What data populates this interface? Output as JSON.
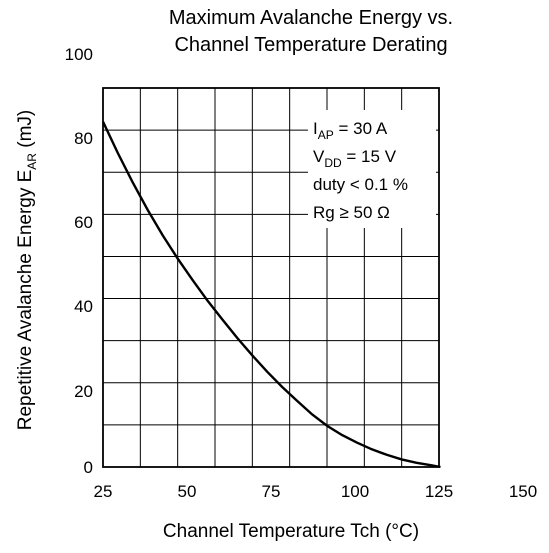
{
  "chart_data": {
    "type": "line",
    "title_line1": "Maximum Avalanche Energy vs.",
    "title_line2": "Channel Temperature Derating",
    "xlabel": "Channel Temperature   Tch  (°C)",
    "ylabel": {
      "main": "Repetitive Avalanche Energy   E",
      "sub": "AR",
      "unit": "   (mJ)"
    },
    "xlim": [
      25,
      150
    ],
    "ylim": [
      0,
      100
    ],
    "x_ticks": [
      "25",
      "50",
      "75",
      "100",
      "125",
      "150"
    ],
    "y_ticks": [
      "0",
      "20",
      "40",
      "60",
      "80",
      "100"
    ],
    "grid": true,
    "grid_x_step": 12.5,
    "grid_y_step": 10,
    "annotations": [
      {
        "main": "I",
        "sub": "AP",
        "rest": " = 30 A"
      },
      {
        "main": "V",
        "sub": "DD",
        "rest": " = 15 V"
      },
      {
        "main": "duty < 0.1 %",
        "sub": "",
        "rest": ""
      },
      {
        "main": "Rg ≥ 50 Ω",
        "sub": "",
        "rest": ""
      }
    ],
    "series": [
      {
        "x": [
          25,
          30,
          35,
          40,
          45,
          50,
          55,
          60,
          65,
          70,
          75,
          80,
          85,
          90,
          95,
          100,
          105,
          110,
          115,
          120,
          125,
          130,
          135,
          138
        ],
        "y": [
          82,
          74.5,
          67.5,
          61,
          55,
          49.5,
          44.4,
          39.5,
          35,
          30.6,
          26.5,
          22.6,
          19,
          15.7,
          12.5,
          9.8,
          7.6,
          5.8,
          4.2,
          2.9,
          1.8,
          1.0,
          0.4,
          0
        ]
      }
    ],
    "line_color": "#000000"
  }
}
